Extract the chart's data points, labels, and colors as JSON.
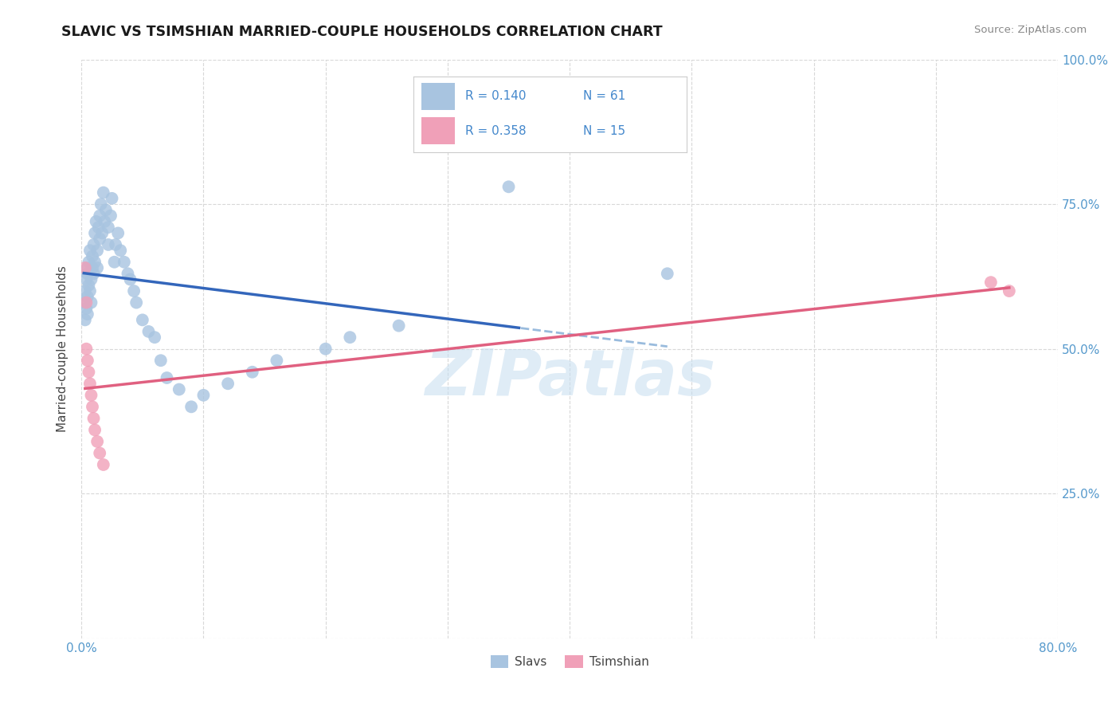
{
  "title": "SLAVIC VS TSIMSHIAN MARRIED-COUPLE HOUSEHOLDS CORRELATION CHART",
  "source": "Source: ZipAtlas.com",
  "ylabel": "Married-couple Households",
  "xlim": [
    0.0,
    0.8
  ],
  "ylim": [
    0.0,
    1.0
  ],
  "xtick_positions": [
    0.0,
    0.1,
    0.2,
    0.3,
    0.4,
    0.5,
    0.6,
    0.7,
    0.8
  ],
  "xticklabels": [
    "0.0%",
    "",
    "",
    "",
    "",
    "",
    "",
    "",
    "80.0%"
  ],
  "ytick_positions": [
    0.0,
    0.25,
    0.5,
    0.75,
    1.0
  ],
  "yticklabels": [
    "",
    "25.0%",
    "50.0%",
    "75.0%",
    "100.0%"
  ],
  "grid_color": "#d8d8d8",
  "background_color": "#ffffff",
  "watermark": "ZIPatlas",
  "slavs_color": "#a8c4e0",
  "tsimshian_color": "#f0a0b8",
  "slavs_line_color": "#3366bb",
  "slavs_dashed_color": "#99bbdd",
  "tsimshian_line_color": "#e06080",
  "slavs_R": 0.14,
  "slavs_N": 61,
  "tsimshian_R": 0.358,
  "tsimshian_N": 15,
  "legend_color": "#4488cc",
  "tick_color": "#5599cc",
  "slavs_x": [
    0.002,
    0.003,
    0.003,
    0.004,
    0.004,
    0.005,
    0.005,
    0.005,
    0.005,
    0.006,
    0.006,
    0.007,
    0.007,
    0.008,
    0.008,
    0.009,
    0.009,
    0.01,
    0.01,
    0.011,
    0.011,
    0.012,
    0.013,
    0.013,
    0.014,
    0.015,
    0.015,
    0.016,
    0.017,
    0.018,
    0.019,
    0.02,
    0.022,
    0.022,
    0.024,
    0.025,
    0.027,
    0.028,
    0.03,
    0.032,
    0.035,
    0.038,
    0.04,
    0.043,
    0.045,
    0.05,
    0.055,
    0.06,
    0.065,
    0.07,
    0.08,
    0.09,
    0.1,
    0.12,
    0.14,
    0.16,
    0.2,
    0.22,
    0.26,
    0.35,
    0.48
  ],
  "slavs_y": [
    0.58,
    0.6,
    0.55,
    0.62,
    0.57,
    0.56,
    0.59,
    0.63,
    0.64,
    0.61,
    0.65,
    0.6,
    0.67,
    0.58,
    0.62,
    0.66,
    0.64,
    0.63,
    0.68,
    0.7,
    0.65,
    0.72,
    0.67,
    0.64,
    0.71,
    0.73,
    0.69,
    0.75,
    0.7,
    0.77,
    0.72,
    0.74,
    0.68,
    0.71,
    0.73,
    0.76,
    0.65,
    0.68,
    0.7,
    0.67,
    0.65,
    0.63,
    0.62,
    0.6,
    0.58,
    0.55,
    0.53,
    0.52,
    0.48,
    0.45,
    0.43,
    0.4,
    0.42,
    0.44,
    0.46,
    0.48,
    0.5,
    0.52,
    0.54,
    0.78,
    0.63
  ],
  "tsimshian_x": [
    0.003,
    0.004,
    0.004,
    0.005,
    0.006,
    0.007,
    0.008,
    0.009,
    0.01,
    0.011,
    0.013,
    0.015,
    0.018,
    0.745,
    0.76
  ],
  "tsimshian_y": [
    0.64,
    0.58,
    0.5,
    0.48,
    0.46,
    0.44,
    0.42,
    0.4,
    0.38,
    0.36,
    0.34,
    0.32,
    0.3,
    0.615,
    0.6
  ]
}
